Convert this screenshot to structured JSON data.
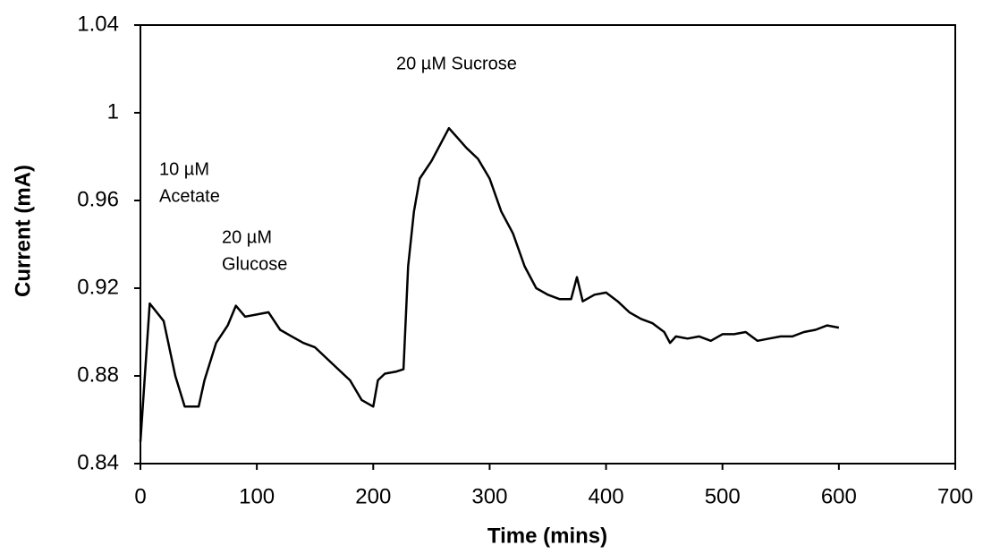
{
  "chart_data": {
    "type": "line",
    "xlabel": "Time (mins)",
    "ylabel": "Current (mA)",
    "annotations": [
      [
        "10 µM",
        "Acetate"
      ],
      [
        "20 µM",
        "Glucose"
      ],
      [
        "20 µM Sucrose"
      ]
    ],
    "x": [
      0,
      8,
      20,
      30,
      38,
      50,
      55,
      65,
      75,
      82,
      90,
      100,
      110,
      120,
      130,
      140,
      150,
      160,
      170,
      180,
      190,
      200,
      204,
      210,
      220,
      226,
      230,
      235,
      240,
      250,
      260,
      265,
      270,
      280,
      290,
      300,
      310,
      320,
      330,
      340,
      350,
      360,
      370,
      375,
      380,
      390,
      400,
      410,
      420,
      430,
      440,
      450,
      455,
      460,
      470,
      480,
      490,
      500,
      510,
      520,
      530,
      540,
      550,
      560,
      570,
      580,
      590,
      600
    ],
    "series": [
      {
        "color": "#000000",
        "values": [
          0.85,
          0.913,
          0.905,
          0.88,
          0.866,
          0.866,
          0.878,
          0.895,
          0.903,
          0.912,
          0.907,
          0.908,
          0.909,
          0.901,
          0.898,
          0.895,
          0.893,
          0.888,
          0.883,
          0.878,
          0.869,
          0.866,
          0.878,
          0.881,
          0.882,
          0.883,
          0.93,
          0.955,
          0.97,
          0.978,
          0.988,
          0.993,
          0.99,
          0.984,
          0.979,
          0.97,
          0.955,
          0.945,
          0.93,
          0.92,
          0.917,
          0.915,
          0.915,
          0.925,
          0.914,
          0.917,
          0.918,
          0.914,
          0.909,
          0.906,
          0.904,
          0.9,
          0.895,
          0.898,
          0.897,
          0.898,
          0.896,
          0.899,
          0.899,
          0.9,
          0.896,
          0.897,
          0.898,
          0.898,
          0.9,
          0.901,
          0.903,
          0.902
        ]
      }
    ],
    "xlim": [
      0,
      700
    ],
    "xticks": [
      0,
      100,
      200,
      300,
      400,
      500,
      600,
      700
    ],
    "ylim": [
      0.84,
      1.04
    ],
    "yticks": [
      0.84,
      0.88,
      0.92,
      0.96,
      1,
      1.04
    ]
  }
}
